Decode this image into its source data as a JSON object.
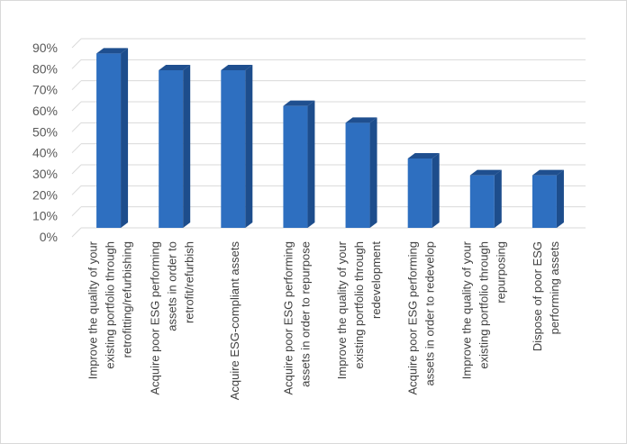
{
  "chart_data": {
    "type": "bar",
    "style": "3d-column",
    "title": "",
    "xlabel": "",
    "ylabel": "",
    "ylim": [
      0,
      0.9
    ],
    "y_tick_labels": [
      "0%",
      "10%",
      "20%",
      "30%",
      "40%",
      "50%",
      "60%",
      "70%",
      "80%",
      "90%"
    ],
    "grid": true,
    "legend": "none",
    "bar_color": "#2e6fc0",
    "bar_side_color": "#1d4d8c",
    "bar_top_color": "#1f4f8f",
    "categories": [
      [
        "Improve the quality of your",
        "existing portfolio through",
        "retrofitting/refurbishing"
      ],
      [
        "Acquire poor ESG performing",
        "assets in order to",
        "retrofit/refurbish"
      ],
      [
        "Acquire ESG-compliant assets"
      ],
      [
        "Acquire poor ESG performing",
        "assets in order to repurpose"
      ],
      [
        "Improve the quality of your",
        "existing portfolio through",
        "redevelopment"
      ],
      [
        "Acquire poor ESG performing",
        "assets in order to redevelop"
      ],
      [
        "Improve the quality of your",
        "existing portfolio through",
        "repurposing"
      ],
      [
        "Dispose of poor ESG",
        "performing assets"
      ]
    ],
    "values": [
      0.83,
      0.75,
      0.75,
      0.58,
      0.5,
      0.33,
      0.25,
      0.25
    ]
  }
}
